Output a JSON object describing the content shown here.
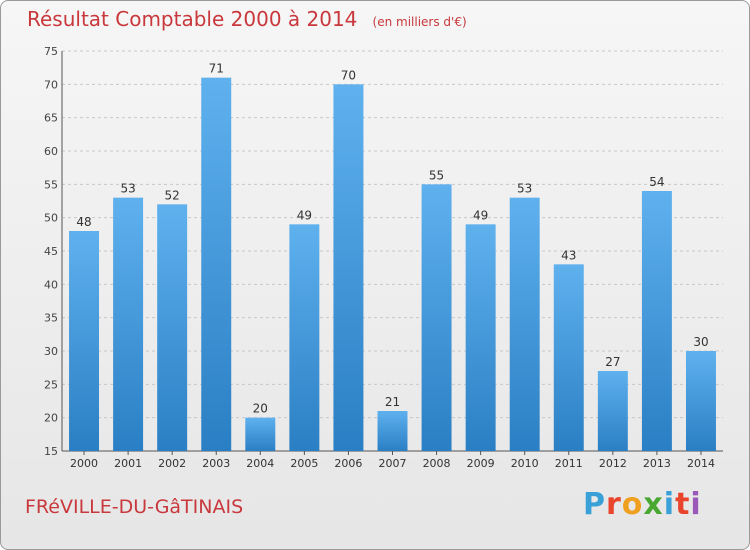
{
  "chart_data": {
    "type": "bar",
    "title": "Résultat Comptable 2000 à 2014",
    "unit": "(en milliers d'€)",
    "categories": [
      "2000",
      "2001",
      "2002",
      "2003",
      "2004",
      "2005",
      "2006",
      "2007",
      "2008",
      "2009",
      "2010",
      "2011",
      "2012",
      "2013",
      "2014"
    ],
    "values": [
      48,
      53,
      52,
      71,
      20,
      49,
      70,
      21,
      55,
      49,
      53,
      43,
      27,
      54,
      30
    ],
    "ylim": [
      15,
      75
    ],
    "yticks": [
      15,
      20,
      25,
      30,
      35,
      40,
      45,
      50,
      55,
      60,
      65,
      70,
      75
    ],
    "grid": true,
    "bar_color": "#4a9fe0"
  },
  "footer": {
    "commune": "FRéVILLE-DU-GâTINAIS",
    "logo_text": "Proxiti",
    "logo_colors": [
      "#3aa0d8",
      "#e8452c",
      "#f0a020",
      "#4aa832",
      "#3aa0d8",
      "#e8452c",
      "#9a58b8"
    ]
  }
}
